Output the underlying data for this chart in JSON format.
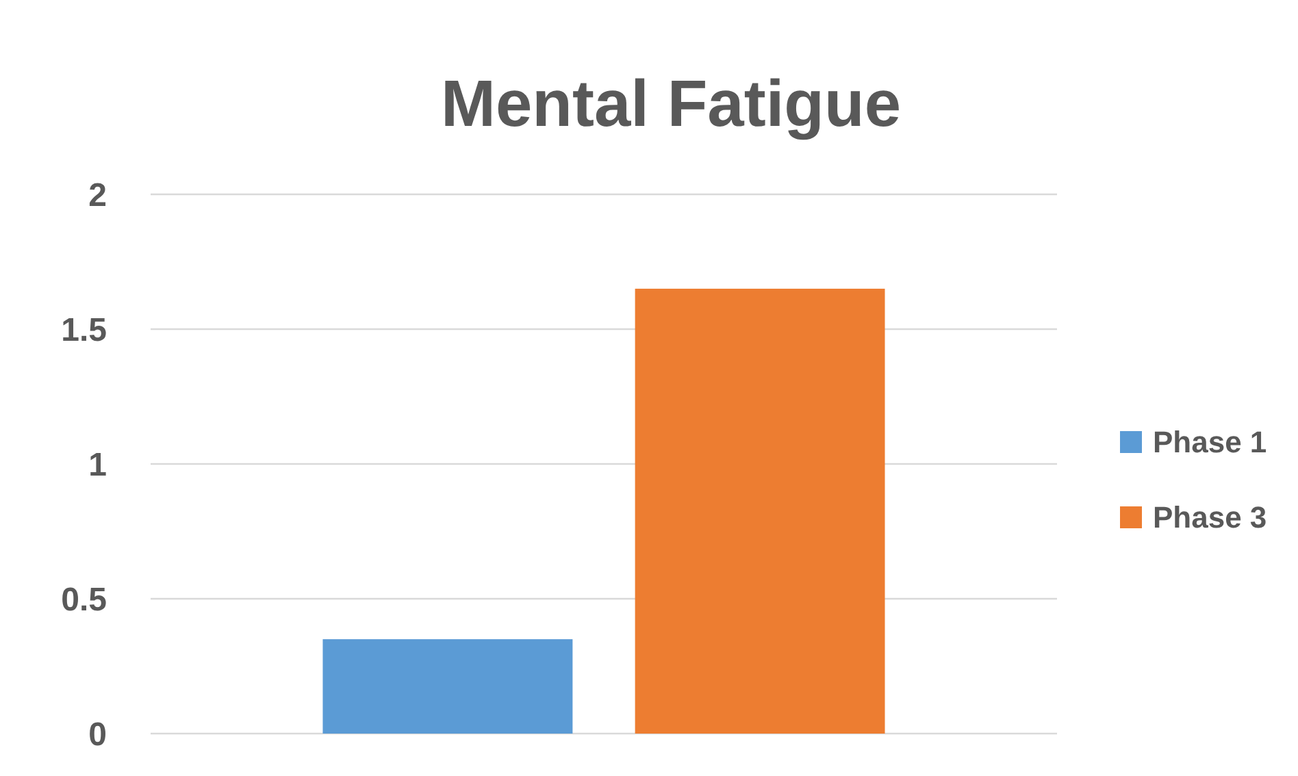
{
  "chart_data": {
    "type": "bar",
    "title": "Mental Fatigue",
    "categories": [
      null
    ],
    "series": [
      {
        "name": "Phase 1",
        "color": "#5b9bd5",
        "values": [
          0.35
        ]
      },
      {
        "name": "Phase 3",
        "color": "#ed7d31",
        "values": [
          1.65
        ]
      }
    ],
    "ylim": [
      0,
      2
    ],
    "yticks": [
      0,
      0.5,
      1,
      1.5,
      2
    ],
    "grid": "y",
    "legend": "right"
  }
}
